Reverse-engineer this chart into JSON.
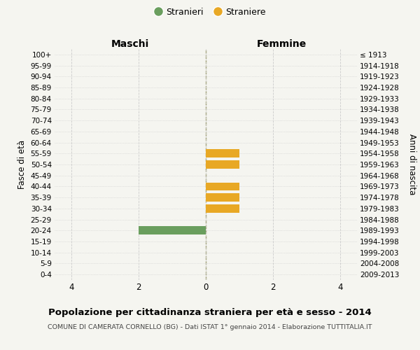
{
  "age_groups": [
    "100+",
    "95-99",
    "90-94",
    "85-89",
    "80-84",
    "75-79",
    "70-74",
    "65-69",
    "60-64",
    "55-59",
    "50-54",
    "45-49",
    "40-44",
    "35-39",
    "30-34",
    "25-29",
    "20-24",
    "15-19",
    "10-14",
    "5-9",
    "0-4"
  ],
  "birth_years": [
    "≤ 1913",
    "1914-1918",
    "1919-1923",
    "1924-1928",
    "1929-1933",
    "1934-1938",
    "1939-1943",
    "1944-1948",
    "1949-1953",
    "1954-1958",
    "1959-1963",
    "1964-1968",
    "1969-1973",
    "1974-1978",
    "1979-1983",
    "1984-1988",
    "1989-1993",
    "1994-1998",
    "1999-2003",
    "2004-2008",
    "2009-2013"
  ],
  "maschi_stranieri": [
    0,
    0,
    0,
    0,
    0,
    0,
    0,
    0,
    0,
    0,
    0,
    0,
    0,
    0,
    0,
    0,
    2,
    0,
    0,
    0,
    0
  ],
  "femmine_straniere": [
    0,
    0,
    0,
    0,
    0,
    0,
    0,
    0,
    0,
    1,
    1,
    0,
    1,
    1,
    1,
    0,
    0,
    0,
    0,
    0,
    0
  ],
  "male_color": "#6a9e5e",
  "female_color": "#e8a825",
  "xlim": [
    -4.5,
    4.5
  ],
  "xticks": [
    -4,
    -2,
    0,
    2,
    4
  ],
  "xticklabels": [
    "4",
    "2",
    "0",
    "2",
    "4"
  ],
  "title": "Popolazione per cittadinanza straniera per età e sesso - 2014",
  "subtitle": "COMUNE DI CAMERATA CORNELLO (BG) - Dati ISTAT 1° gennaio 2014 - Elaborazione TUTTITALIA.IT",
  "ylabel_left": "Fasce di età",
  "ylabel_right": "Anni di nascita",
  "header_left": "Maschi",
  "header_right": "Femmine",
  "legend_stranieri": "Stranieri",
  "legend_straniere": "Straniere",
  "bg_color": "#f5f5f0",
  "grid_color": "#cccccc",
  "bar_height": 0.75
}
